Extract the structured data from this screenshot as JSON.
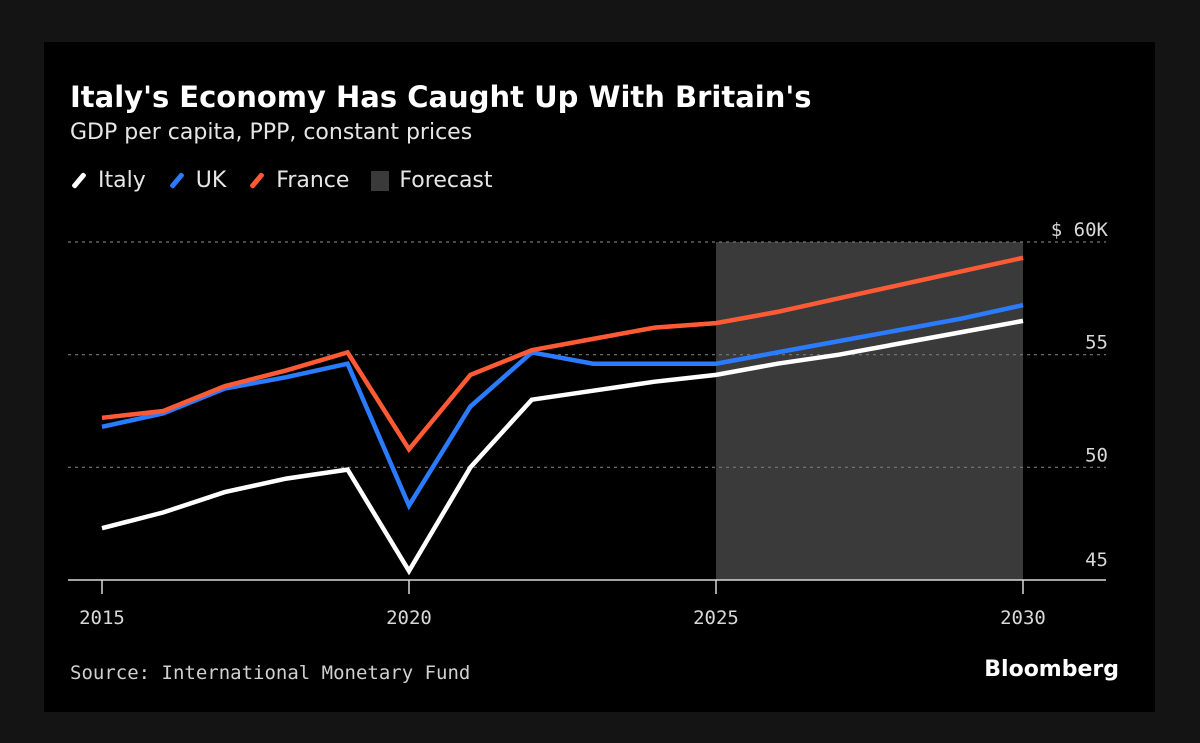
{
  "header": {
    "title": "Italy's Economy Has Caught Up With Britain's",
    "subtitle": "GDP per capita, PPP, constant prices"
  },
  "legend": {
    "italy": "Italy",
    "uk": "UK",
    "france": "France",
    "forecast": "Forecast"
  },
  "footer": {
    "source": "Source: International Monetary Fund",
    "brand": "Bloomberg"
  },
  "colors": {
    "italy": "#ffffff",
    "uk": "#2b7bff",
    "france": "#ff5a36",
    "forecast": "#3a3a3a",
    "grid": "#777777"
  },
  "chart_data": {
    "type": "line",
    "title": "Italy's Economy Has Caught Up With Britain's",
    "subtitle": "GDP per capita, PPP, constant prices",
    "x": [
      2015,
      2016,
      2017,
      2018,
      2019,
      2020,
      2021,
      2022,
      2023,
      2024,
      2025,
      2026,
      2027,
      2028,
      2029,
      2030
    ],
    "series": [
      {
        "name": "Italy",
        "values": [
          47.3,
          48.0,
          48.9,
          49.5,
          49.9,
          45.4,
          50.0,
          53.0,
          53.4,
          53.8,
          54.1,
          54.6,
          55.0,
          55.5,
          56.0,
          56.5
        ]
      },
      {
        "name": "UK",
        "values": [
          51.8,
          52.4,
          53.5,
          54.0,
          54.6,
          48.3,
          52.7,
          55.1,
          54.6,
          54.6,
          54.6,
          55.1,
          55.6,
          56.1,
          56.6,
          57.2
        ]
      },
      {
        "name": "France",
        "values": [
          52.2,
          52.5,
          53.6,
          54.3,
          55.1,
          50.8,
          54.1,
          55.2,
          55.7,
          56.2,
          56.4,
          56.9,
          57.5,
          58.1,
          58.7,
          59.3
        ]
      }
    ],
    "forecast_range": [
      2025,
      2030
    ],
    "xlim": [
      2015,
      2030
    ],
    "ylim": [
      45,
      60
    ],
    "x_ticks": [
      2015,
      2020,
      2025,
      2030
    ],
    "y_ticks": [
      {
        "value": 45,
        "label": "45"
      },
      {
        "value": 50,
        "label": "50"
      },
      {
        "value": 55,
        "label": "55"
      },
      {
        "value": 60,
        "label": "$ 60K"
      }
    ],
    "gridlines": [
      50,
      55,
      60
    ],
    "legend_position": "top-left"
  }
}
